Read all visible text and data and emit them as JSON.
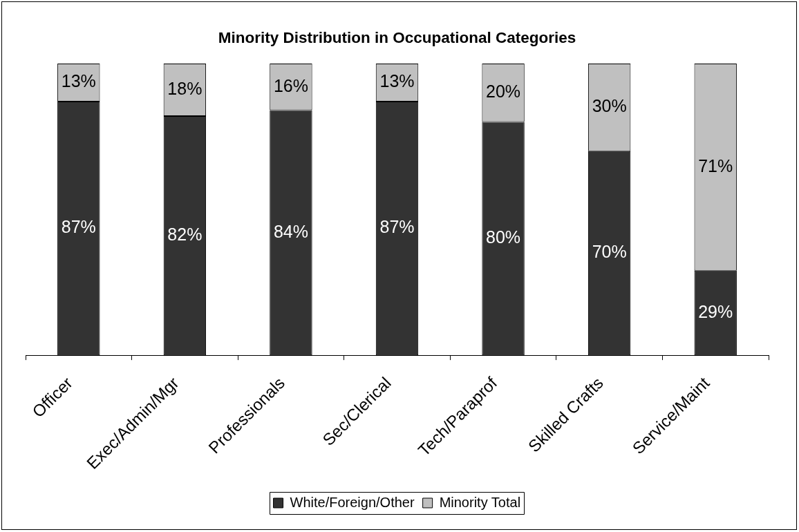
{
  "chart_data": {
    "type": "bar",
    "title": "Minority Distribution in Occupational Categories",
    "categories": [
      "Officer",
      "Exec/Admin/Mgr",
      "Professionals",
      "Sec/Clerical",
      "Tech/Paraprof",
      "Skilled Crafts",
      "Service/Maint"
    ],
    "stacked": true,
    "ylim": [
      0,
      100
    ],
    "tick_labels": "x",
    "legend": "bottom",
    "series": [
      {
        "name": "White/Foreign/Other",
        "color": "#333333",
        "values": [
          87,
          82,
          84,
          87,
          80,
          70,
          29
        ],
        "value_labels": [
          "87%",
          "82%",
          "84%",
          "87%",
          "80%",
          "70%",
          "29%"
        ]
      },
      {
        "name": "Minority Total",
        "color": "#c0c0c0",
        "values": [
          13,
          18,
          16,
          13,
          20,
          30,
          71
        ],
        "value_labels": [
          "13%",
          "18%",
          "16%",
          "13%",
          "20%",
          "30%",
          "71%"
        ]
      }
    ]
  }
}
